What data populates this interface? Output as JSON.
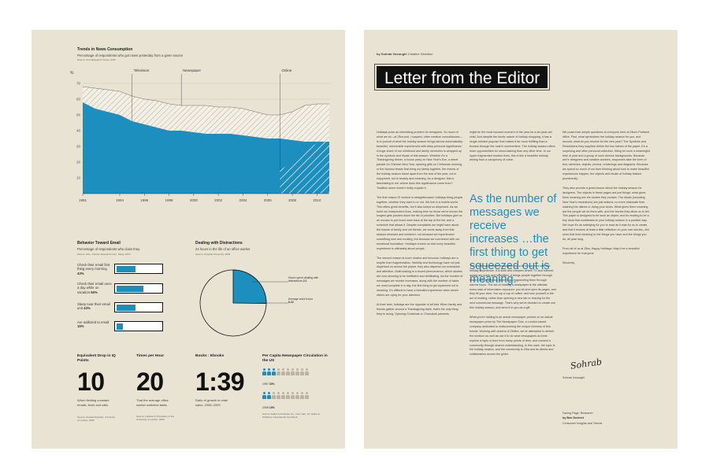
{
  "left_page": {
    "news_chart": {
      "title": "Trends in News Consumption",
      "subtitle": "Percentage of respondents who got news yesterday from a given source",
      "source": "Source: Pew Research Center, 2010",
      "y_unit": "%",
      "annotations": [
        "Television",
        "Newspaper",
        "Online"
      ]
    },
    "email": {
      "title": "Behavior Toward Email",
      "subtitle": "Percentage of respondents who claim they:",
      "source": "Source: AOL, Opinion Research Corp. Study, 2007",
      "items": [
        {
          "label": "Check their email first thing every morning",
          "pct": "43%",
          "value": 43
        },
        {
          "label": "Check their email once a day while on vacation",
          "pct": "60%",
          "value": 60
        },
        {
          "label": "Sleep near their email unit",
          "pct": "43%",
          "value": 43
        },
        {
          "label": "Are addicted to email",
          "pct": "15%",
          "value": 15
        }
      ]
    },
    "distractions": {
      "title": "Dealing with Distractions",
      "subtitle": "24 hours in the life of an office worker",
      "source": "Source: Hospital University, 2009",
      "slices": [
        {
          "label": "Hours spent dealing with distractions",
          "value_text": "2.1",
          "value": 2.1
        },
        {
          "label": "Average work hours",
          "value_text": "6.22",
          "value": 6.22
        }
      ]
    },
    "stats": [
      {
        "title": "Equivalent Drop in IQ Points",
        "big": "10",
        "desc": "When fielding constant emails, texts and calls",
        "source": "Source: Hewlett-Packard, University of London, 2005"
      },
      {
        "title": "Times per Hour",
        "big": "20",
        "desc": "That the average office worker switches tasks",
        "source": "Source: Institute of Psychiatry of the University of London, 2005"
      },
      {
        "title": "Books : Ebooks",
        "big": "1:39",
        "desc": "Ratio of growth in retail sales, 2008–2009",
        "source": ""
      }
    ],
    "per_capita": {
      "title": "Per Capita Newspaper Circulation in the US",
      "rows": [
        {
          "year": "1997",
          "pct": "30%",
          "value": 30
        },
        {
          "year": "2008",
          "pct": "18%",
          "value": 18
        }
      ],
      "source": "Source: Editor & Publisher Co., New York, NY, Editor & Publisher International Year Book"
    }
  },
  "right_page": {
    "byline_author": "by Sohrab Vosoughi",
    "byline_role": "Creative Direction",
    "title": "Letter from the Editor",
    "pull_quote": "As the number of messages we receive increases …the first thing to get squeezed out is meaning.",
    "col1": [
      "Holidays pose an interesting problem for designers. So much of what we do—at Ziba and, I suspect, other creative consultancies—is in pursuit of what the holiday season brings almost automatically: beautiful, memorable experiences with deep personal significance. A huge share of our childhood and family memories is wrapped up in the symbols and rituals of this season. Whether it's a Thanksgiving dinner, a house party on New Year's Eve, a street parade for Chinese New Year, opening gifts on Christmas morning, or the Nowruz feasts that bring my family together, the events of the holiday season stand apart from the rest of the year, not in enjoyment, but in beauty and meaning. As a designer, this is fascinating to me: where does this significance come from? Tradition alone doesn't really explain it.",
      "The first reason I'll venture is straightforward: holidays bring people together, whether they want to or not. We live in a mobile world. This offers great benefits, but it also keeps us dispersed. As we build our independent lives, making time for those we've known the longest gets pushed down the list of priorities. But holidays give us an excuse to put loved ones back at the top of the list, and a schedule that allows it. Despite complaints we might have about the hassle of family and old friends, we come away from this season renewed and centered, not because we experienced something new and exciting, but because we connected with our emotional foundation. Holidays remind us that every beautiful experience is ultimately about people.",
      "The second reason is more elusive and tenuous: holidays are a respite from fragmentation. Mobility and technology have not just dispersed us across the planet, they also disperse our schedules and attention. Multi-tasking is a recent phenomenon, which studies are now showing to be inefficient and debilitating. As the number of messages we receive increases, along with the number of tasks we must complete in a day, the first thing to get squeezed out is meaning. It's difficult to have a beautiful experience when seven others are vying for your attention.",
      "At their best, holidays are the opposite of all that. When family and friends gather around a Thanksgiving table, that's the only thing they're doing. Opening Christmas or Chanukah presents"
    ],
    "col2a": [
      "might be the most focused moment of the year for a six-year-old child. And despite the hectic nature of holiday shopping, it has a single-minded purpose that makes it far more fulfilling than a browse through the mall in summertime. The holiday season offers more opportunities for mono-tasking than any other time. In our hyper fragmented modern lives, this is like a beautiful melody arising from a cacophony of noise."
    ],
    "col2b": [
      "The traditional printed newspaper has a lot in common with the holiday experience. It is slow and complex where TV and Internet media are quick and simplified. It brings people together through shared understanding rather than fragmenting them through narrow focus. The act of reading a newspaper is the ultimate mono-task of information exposure: you sit and open its pages, and they fill your view. You sip a cup of coffee, and lose yourself in the act of reading, rather than opening a new tab or bracing for the next commercial message. That's why we've decided to create one this holiday season, and send it to you as a gift.",
      "What you're holding is an actual newspaper, printed on an actual newspaper press by The Newspaper Club, a London-based company dedicated to rediscovering the unique richness of this format. Working with dozens of Zibites, we've attempted to stretch the medium as well as use it to do what newspapers do best: explore a topic or time from many points of view, and connect a community through shared understanding. In this case, the topic is the holiday season, and the community is Ziba and its clients and collaborators across the globe."
    ],
    "col3": [
      "We posed two simple questions to everyone here at Ziba's Portland office. First, what symbolizes the holiday season for you, and second, what do you resolve for the new year? The Symbols and Resolutions they supplied define the two halves of the paper. It's a surprising and often personal collection, fitting for such a meaningful time of year and a group of such diverse backgrounds. Because we're designers and creative workers, responses take the form of text, sketches, objects, photos, renderings and diagrams. Because we spend so much of our time thinking about how to make beautiful experiences happen, the objects and rituals of holiday feature prominently.",
      "They also provide a great lesson about the holiday season for designers. The objects in these pages are just things: what gives them meaning are the stories they contain. The rituals (including New Year's resolutions) are just actions; no more elaborate than washing the dishes or doing your taxes. What gives them meaning are the people we do them with, and the stories they allow us to tell. This paper is designed to be such an object, and its reading to be a tiny ritual that contributes to your holiday season in a positive way. We hope it's as satisfying for you to read as it was for us to create, and that it evokes at least a little reflection on your own stories—the ones that lend meaning to the things you have and the things you do, all year long.",
      "From all of us at Ziba, Happy Holidays. May it be a beautiful experience for everyone."
    ],
    "signoff": "Sincerely,",
    "signature": "Sohrab",
    "sign_name": "Sohrab Vosoughi",
    "facing_1": "Facing Page: Research",
    "facing_2": "by Ben Dechert",
    "facing_3": "Consumer Insights and Trends"
  },
  "chart_data": {
    "type": "area",
    "title": "Trends in News Consumption",
    "x": [
      1991,
      1992,
      1993,
      1994,
      1995,
      1996,
      1997,
      1998,
      1999,
      2000,
      2001,
      2002,
      2003,
      2004,
      2005,
      2006,
      2007,
      2008,
      2009,
      2010,
      2011
    ],
    "x_ticks": [
      "1991",
      "1994",
      "1996",
      "1998",
      "2000",
      "2002",
      "2004",
      "2006",
      "2008",
      "2010"
    ],
    "y_ticks": [
      "10",
      "20",
      "30",
      "40",
      "50",
      "60",
      "70"
    ],
    "ylim": [
      0,
      75
    ],
    "series": [
      {
        "name": "Television",
        "values": [
          58,
          54,
          52,
          50,
          46,
          44,
          42,
          40,
          40,
          39,
          38,
          38,
          38,
          37,
          36,
          35,
          35,
          34,
          33,
          33,
          33
        ]
      },
      {
        "name": "Newspaper",
        "values": [
          68,
          67,
          66,
          65,
          62,
          60,
          59,
          57,
          56,
          56,
          56,
          55,
          55,
          54,
          52,
          50,
          50,
          52,
          56,
          57,
          57
        ]
      },
      {
        "name": "Online",
        "values": [
          null,
          null,
          null,
          null,
          null,
          null,
          null,
          null,
          null,
          null,
          null,
          null,
          null,
          null,
          null,
          null,
          15,
          20,
          27,
          32,
          34
        ]
      }
    ],
    "colors": {
      "television": "#1c8fbe",
      "hatch": "#8a8272",
      "grid": "#cfc8b8"
    }
  }
}
